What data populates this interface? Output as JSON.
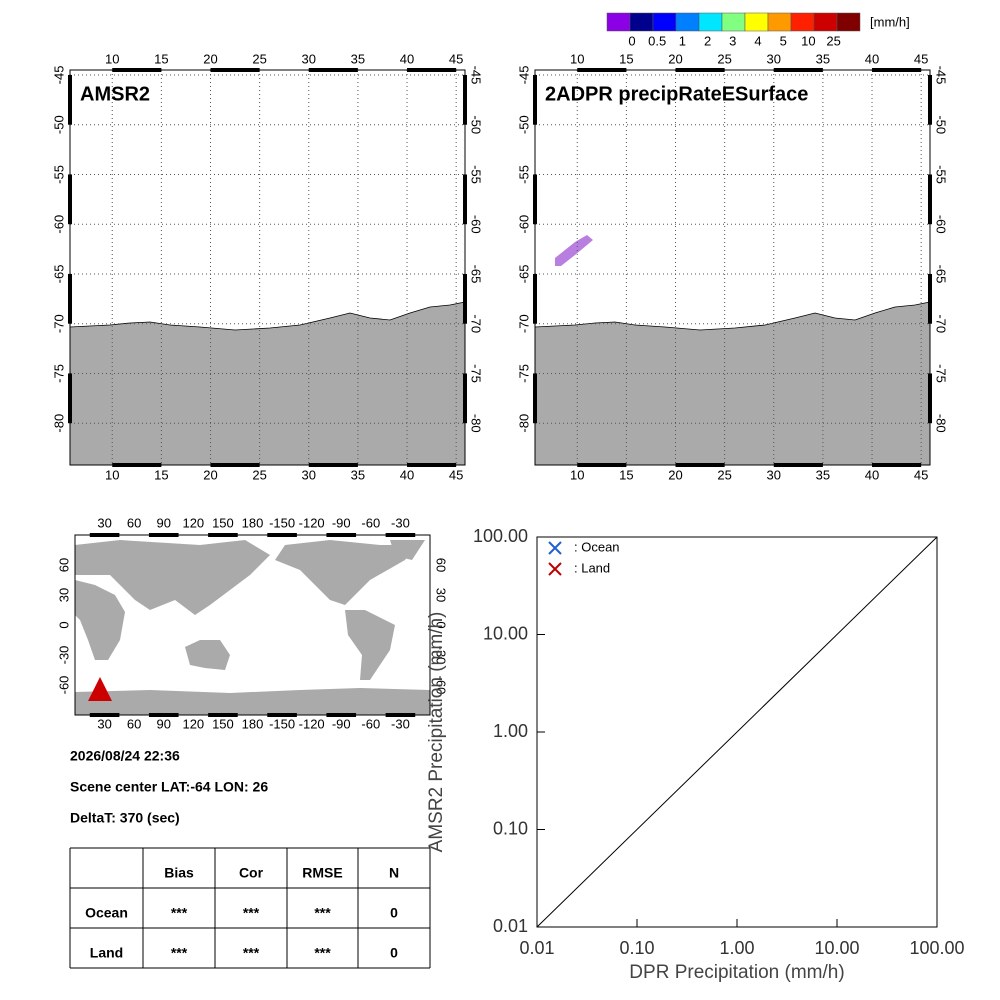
{
  "colorbar": {
    "unit": "[mm/h]",
    "labels": [
      "0",
      "0.5",
      "1",
      "2",
      "3",
      "4",
      "5",
      "10",
      "25"
    ],
    "colors": [
      "#8c00e6",
      "#00008c",
      "#0000ff",
      "#0080ff",
      "#00e6ff",
      "#80ff80",
      "#ffff00",
      "#ff9900",
      "#ff2000",
      "#cc0000",
      "#800000"
    ]
  },
  "maps": [
    {
      "title": "AMSR2",
      "lonlim": [
        5.7,
        45.9
      ],
      "latlim": [
        -44.5,
        -84.2
      ],
      "lon_ticks": [
        10,
        15,
        20,
        25,
        30,
        35,
        40,
        45
      ],
      "lat_ticks": [
        -45,
        -50,
        -55,
        -60,
        -65,
        -70,
        -75,
        -80
      ]
    },
    {
      "title": "2ADPR precipRateESurface",
      "lonlim": [
        5.7,
        45.9
      ],
      "latlim": [
        -44.5,
        -84.2
      ],
      "lon_ticks": [
        10,
        15,
        20,
        25,
        30,
        35,
        40,
        45
      ],
      "lat_ticks": [
        -45,
        -50,
        -55,
        -60,
        -65,
        -70,
        -75,
        -80
      ]
    }
  ],
  "globe": {
    "lon_labels": [
      30,
      60,
      90,
      120,
      150,
      180,
      -150,
      -120,
      -90,
      -60,
      -30
    ],
    "lat_labels": [
      60,
      30,
      0,
      -30,
      -60
    ]
  },
  "info": {
    "datetime": "2026/08/24 22:36",
    "scene": "Scene center LAT:-64   LON:  26",
    "delta": "DeltaT:  370 (sec)"
  },
  "table": {
    "header": [
      "Bias",
      "Cor",
      "RMSE",
      "N"
    ],
    "rows": [
      [
        "Ocean",
        "***",
        "***",
        "***",
        "0"
      ],
      [
        "Land",
        "***",
        "***",
        "***",
        "0"
      ]
    ]
  },
  "chart_data": {
    "type": "scatter",
    "xlabel": "DPR Precipitation (mm/h)",
    "ylabel": "AMSR2 Precipitation (mm/h)",
    "log_scale": true,
    "xlim": [
      0.01,
      100
    ],
    "ylim": [
      0.01,
      100
    ],
    "xticks": [
      {
        "value": 0.01,
        "label": "0.01"
      },
      {
        "value": 0.1,
        "label": "0.10"
      },
      {
        "value": 1,
        "label": "1.00"
      },
      {
        "value": 10,
        "label": "10.00"
      },
      {
        "value": 100,
        "label": "100.00"
      }
    ],
    "yticks": [
      {
        "value": 0.01,
        "label": "0.01"
      },
      {
        "value": 0.1,
        "label": "0.10"
      },
      {
        "value": 1,
        "label": "1.00"
      },
      {
        "value": 10,
        "label": "10.00"
      },
      {
        "value": 100,
        "label": "100.00"
      }
    ],
    "series": [
      {
        "name": ": Ocean",
        "color": "#1f5fd0",
        "x": [],
        "values": []
      },
      {
        "name": ": Land",
        "color": "#c00000",
        "x": [],
        "values": []
      }
    ]
  }
}
